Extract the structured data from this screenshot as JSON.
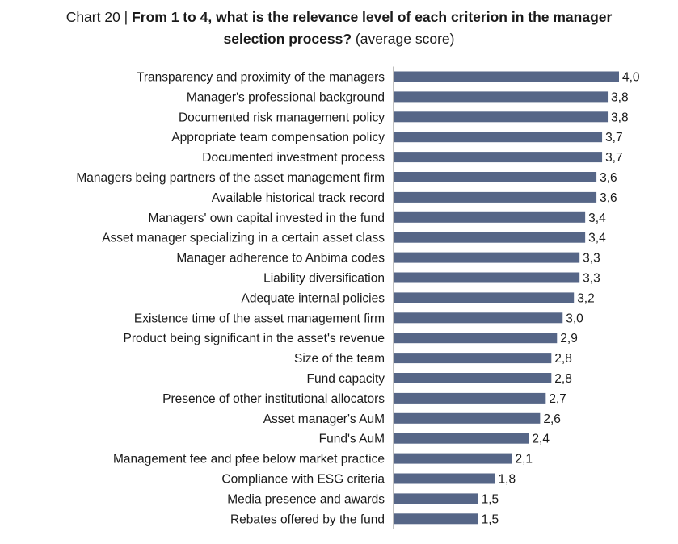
{
  "chart_data": {
    "type": "bar",
    "orientation": "horizontal",
    "title_lead": "Chart 20 | ",
    "title_line1": "From 1 to 4, what is the relevance level of each criterion in the manager",
    "title_line2": "selection process?",
    "subtitle": " (average score)",
    "xlim": [
      0,
      4.0
    ],
    "grid": false,
    "bar_color": "#566687",
    "categories": [
      "Transparency and proximity of the managers",
      "Manager's professional background",
      "Documented risk management policy",
      "Appropriate team compensation policy",
      "Documented investment process",
      "Managers being partners of the asset management firm",
      "Available historical track record",
      "Managers' own capital invested in the fund",
      "Asset manager specializing in a certain asset class",
      "Manager adherence to Anbima codes",
      "Liability diversification",
      "Adequate internal policies",
      "Existence time of the asset management firm",
      "Product being significant in the asset's revenue",
      "Size of the team",
      "Fund capacity",
      "Presence of other institutional allocators",
      "Asset manager's AuM",
      "Fund's AuM",
      "Management fee and pfee below market practice",
      "Compliance with ESG criteria",
      "Media presence and awards",
      "Rebates offered by the fund"
    ],
    "values": [
      4.0,
      3.8,
      3.8,
      3.7,
      3.7,
      3.6,
      3.6,
      3.4,
      3.4,
      3.3,
      3.3,
      3.2,
      3.0,
      2.9,
      2.8,
      2.8,
      2.7,
      2.6,
      2.4,
      2.1,
      1.8,
      1.5,
      1.5
    ],
    "value_labels": [
      "4,0",
      "3,8",
      "3,8",
      "3,7",
      "3,7",
      "3,6",
      "3,6",
      "3,4",
      "3,4",
      "3,3",
      "3,3",
      "3,2",
      "3,0",
      "2,9",
      "2,8",
      "2,8",
      "2,7",
      "2,6",
      "2,4",
      "2,1",
      "1,8",
      "1,5",
      "1,5"
    ]
  }
}
